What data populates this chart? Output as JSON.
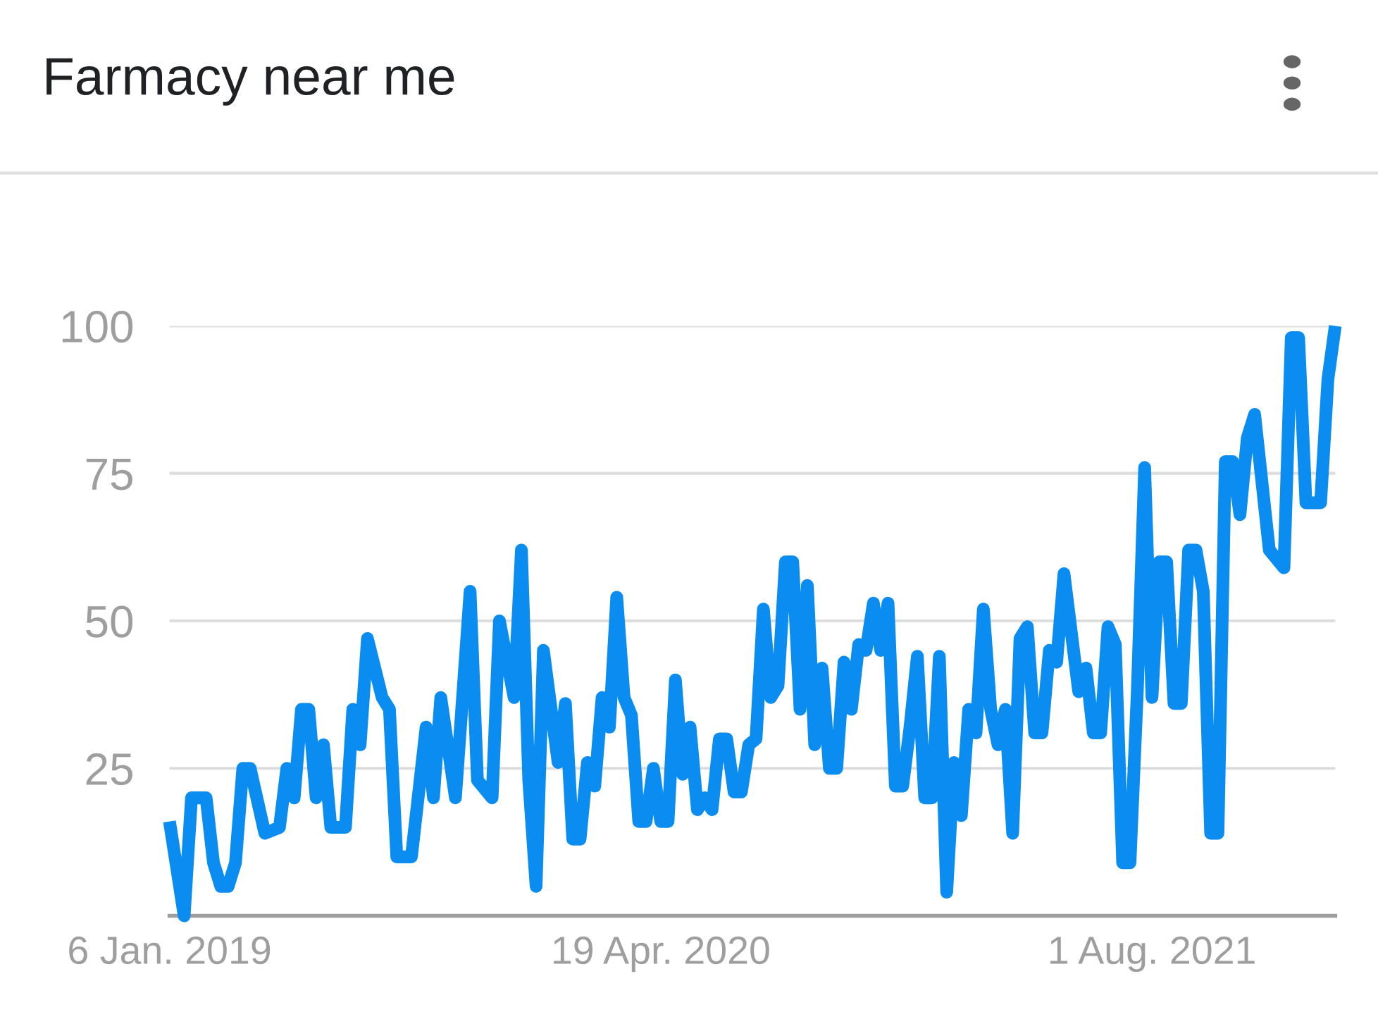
{
  "chart_data": {
    "type": "line",
    "title": "Farmacy near me",
    "x": [
      "2019-01-06",
      "2019-01-20",
      "2019-01-27",
      "2019-02-10",
      "2019-02-17",
      "2019-02-24",
      "2019-03-03",
      "2019-03-10",
      "2019-03-17",
      "2019-03-24",
      "2019-04-07",
      "2019-04-21",
      "2019-04-28",
      "2019-05-05",
      "2019-05-12",
      "2019-05-19",
      "2019-05-26",
      "2019-06-02",
      "2019-06-09",
      "2019-06-23",
      "2019-06-30",
      "2019-07-07",
      "2019-07-14",
      "2019-07-28",
      "2019-08-04",
      "2019-08-11",
      "2019-08-25",
      "2019-09-08",
      "2019-09-15",
      "2019-09-22",
      "2019-10-06",
      "2019-10-20",
      "2019-10-27",
      "2019-11-10",
      "2019-11-17",
      "2019-12-01",
      "2019-12-08",
      "2019-12-15",
      "2019-12-22",
      "2019-12-29",
      "2020-01-12",
      "2020-01-19",
      "2020-01-26",
      "2020-02-02",
      "2020-02-09",
      "2020-02-16",
      "2020-02-23",
      "2020-03-01",
      "2020-03-08",
      "2020-03-15",
      "2020-03-22",
      "2020-03-29",
      "2020-04-05",
      "2020-04-12",
      "2020-04-19",
      "2020-04-26",
      "2020-05-03",
      "2020-05-10",
      "2020-05-17",
      "2020-05-24",
      "2020-05-31",
      "2020-06-07",
      "2020-06-14",
      "2020-06-21",
      "2020-06-28",
      "2020-07-05",
      "2020-07-12",
      "2020-07-19",
      "2020-07-26",
      "2020-08-02",
      "2020-08-09",
      "2020-08-16",
      "2020-08-23",
      "2020-08-30",
      "2020-09-06",
      "2020-09-13",
      "2020-09-20",
      "2020-09-27",
      "2020-10-04",
      "2020-10-11",
      "2020-10-18",
      "2020-10-25",
      "2020-11-01",
      "2020-11-08",
      "2020-11-15",
      "2020-11-22",
      "2020-11-29",
      "2020-12-06",
      "2020-12-13",
      "2020-12-20",
      "2020-12-27",
      "2021-01-03",
      "2021-01-10",
      "2021-01-17",
      "2021-01-24",
      "2021-01-31",
      "2021-02-07",
      "2021-02-14",
      "2021-02-21",
      "2021-02-28",
      "2021-03-07",
      "2021-03-14",
      "2021-03-21",
      "2021-03-28",
      "2021-04-04",
      "2021-04-11",
      "2021-04-18",
      "2021-04-25",
      "2021-05-02",
      "2021-05-09",
      "2021-05-23",
      "2021-05-30",
      "2021-06-06",
      "2021-06-13",
      "2021-06-20",
      "2021-06-27",
      "2021-07-04",
      "2021-07-11",
      "2021-07-18",
      "2021-07-25",
      "2021-08-01",
      "2021-08-08",
      "2021-08-15",
      "2021-08-22",
      "2021-08-29",
      "2021-09-05",
      "2021-09-12",
      "2021-09-19",
      "2021-09-26",
      "2021-10-03",
      "2021-10-10",
      "2021-10-17",
      "2021-10-24",
      "2021-10-31",
      "2021-11-07",
      "2021-11-21",
      "2021-12-05",
      "2021-12-12",
      "2021-12-19",
      "2021-12-26",
      "2022-01-09",
      "2022-01-16",
      "2022-01-23"
    ],
    "values": [
      16,
      0,
      20,
      20,
      9,
      5,
      5,
      9,
      25,
      25,
      14,
      15,
      25,
      20,
      35,
      35,
      20,
      29,
      15,
      15,
      35,
      29,
      47,
      37,
      35,
      10,
      10,
      32,
      20,
      37,
      20,
      55,
      23,
      20,
      50,
      37,
      62,
      23,
      5,
      45,
      26,
      36,
      13,
      13,
      26,
      22,
      37,
      32,
      54,
      37,
      34,
      16,
      16,
      25,
      16,
      16,
      40,
      24,
      32,
      18,
      20,
      18,
      30,
      30,
      21,
      21,
      29,
      30,
      52,
      37,
      39,
      60,
      60,
      35,
      56,
      29,
      42,
      25,
      25,
      43,
      35,
      46,
      45,
      53,
      45,
      53,
      22,
      22,
      32,
      44,
      20,
      20,
      44,
      4,
      26,
      17,
      35,
      31,
      52,
      35,
      29,
      35,
      14,
      47,
      49,
      31,
      31,
      45,
      43,
      58,
      38,
      42,
      31,
      31,
      49,
      46,
      9,
      9,
      38,
      76,
      37,
      60,
      60,
      36,
      36,
      62,
      62,
      55,
      14,
      14,
      77,
      77,
      68,
      81,
      85,
      62,
      59,
      98,
      98,
      70,
      70,
      91,
      100
    ],
    "color": "#0a8cf0",
    "xlim": [
      "2019-01-06",
      "2022-01-23"
    ],
    "xticks": [
      {
        "value": "2019-01-06",
        "label": "6 Jan. 2019"
      },
      {
        "value": "2020-04-19",
        "label": "19 Apr. 2020"
      },
      {
        "value": "2021-08-01",
        "label": "1 Aug. 2021"
      }
    ],
    "ylim": [
      0,
      100
    ],
    "yticks": [
      25,
      50,
      75,
      100
    ],
    "grid": "y",
    "marker": "none",
    "line_style": "solid"
  }
}
